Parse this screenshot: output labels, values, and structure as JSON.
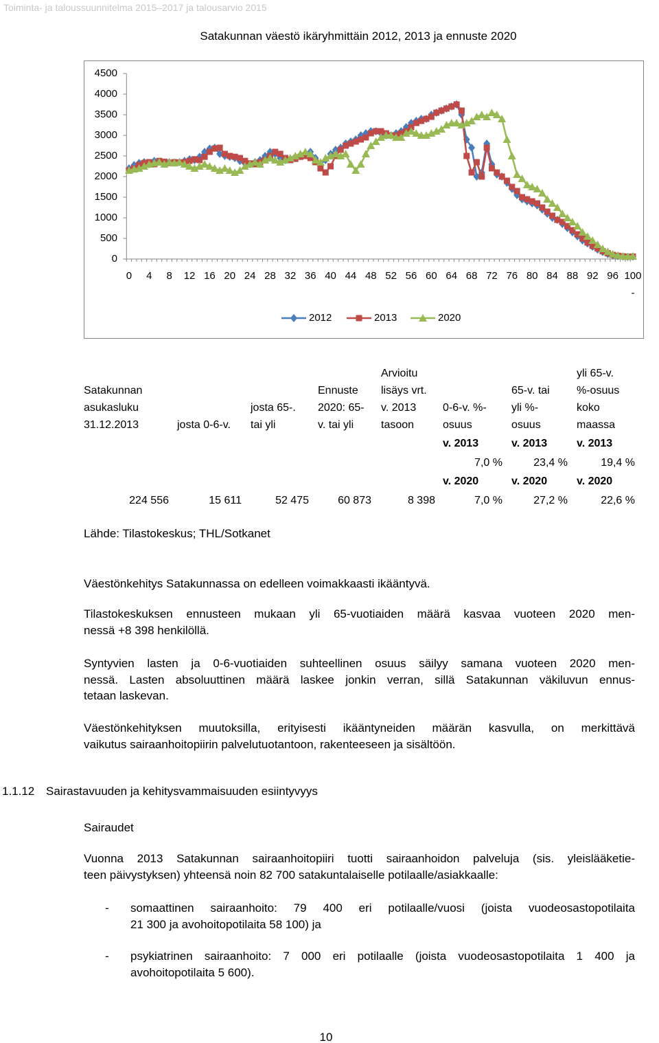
{
  "header": "Toiminta- ja taloussuunnitelma 2015–2017 ja talousarvio 2015",
  "chart_data": {
    "type": "line",
    "title": "Satakunnan väestö ikäryhmittäin 2012, 2013 ja ennuste 2020",
    "categories": [
      "0",
      null,
      null,
      null,
      "4",
      null,
      null,
      null,
      "8",
      null,
      null,
      null,
      "12",
      null,
      null,
      null,
      "16",
      null,
      null,
      null,
      "20",
      null,
      null,
      null,
      "24",
      null,
      null,
      null,
      "28",
      null,
      null,
      null,
      "32",
      null,
      null,
      null,
      "36",
      null,
      null,
      null,
      "40",
      null,
      null,
      null,
      "44",
      null,
      null,
      null,
      "48",
      null,
      null,
      null,
      "52",
      null,
      null,
      null,
      "56",
      null,
      null,
      null,
      "60",
      null,
      null,
      null,
      "64",
      null,
      null,
      null,
      "68",
      null,
      null,
      null,
      "72",
      null,
      null,
      null,
      "76",
      null,
      null,
      null,
      "80",
      null,
      null,
      null,
      "84",
      null,
      null,
      null,
      "88",
      null,
      null,
      null,
      "92",
      null,
      null,
      null,
      "96",
      null,
      null,
      null,
      "100 -"
    ],
    "series": [
      {
        "name": "2012",
        "color": "#4a7ebb",
        "marker": "diamond",
        "values": [
          2200,
          2280,
          2330,
          2350,
          2300,
          2380,
          2360,
          2330,
          2350,
          2340,
          2350,
          2380,
          2420,
          2400,
          2480,
          2600,
          2680,
          2700,
          2550,
          2500,
          2480,
          2450,
          2380,
          2320,
          2300,
          2350,
          2400,
          2500,
          2600,
          2550,
          2450,
          2400,
          2430,
          2480,
          2500,
          2520,
          2600,
          2450,
          2300,
          2400,
          2550,
          2650,
          2700,
          2800,
          2850,
          2900,
          3000,
          3050,
          3100,
          3100,
          3050,
          3000,
          3000,
          3050,
          3100,
          3200,
          3300,
          3350,
          3400,
          3400,
          3500,
          3550,
          3600,
          3650,
          3700,
          3750,
          3500,
          2900,
          2700,
          2000,
          2100,
          2800,
          2300,
          2050,
          2000,
          1850,
          1700,
          1550,
          1450,
          1400,
          1350,
          1300,
          1200,
          1100,
          1000,
          950,
          850,
          750,
          650,
          550,
          450,
          380,
          300,
          230,
          170,
          120,
          90,
          70,
          60,
          55,
          60
        ]
      },
      {
        "name": "2013",
        "color": "#be4b48",
        "marker": "square",
        "values": [
          2150,
          2200,
          2280,
          2330,
          2350,
          2300,
          2380,
          2360,
          2330,
          2350,
          2340,
          2350,
          2380,
          2420,
          2400,
          2480,
          2600,
          2680,
          2700,
          2550,
          2500,
          2480,
          2450,
          2380,
          2320,
          2300,
          2350,
          2400,
          2500,
          2600,
          2550,
          2450,
          2400,
          2430,
          2480,
          2500,
          2450,
          2350,
          2200,
          2100,
          2250,
          2500,
          2650,
          2750,
          2800,
          2850,
          2900,
          2950,
          3050,
          3100,
          3100,
          3050,
          3000,
          3000,
          3050,
          3100,
          3200,
          3300,
          3350,
          3400,
          3450,
          3550,
          3600,
          3650,
          3700,
          3750,
          3600,
          2500,
          2100,
          2350,
          2000,
          2700,
          2200,
          2100,
          2000,
          1900,
          1750,
          1650,
          1500,
          1450,
          1400,
          1350,
          1250,
          1150,
          1050,
          950,
          900,
          800,
          700,
          600,
          500,
          400,
          320,
          260,
          190,
          140,
          100,
          80,
          65,
          55,
          60
        ]
      },
      {
        "name": "2020",
        "color": "#98b954",
        "marker": "triangle",
        "values": [
          2150,
          2180,
          2200,
          2250,
          2300,
          2330,
          2350,
          2300,
          2350,
          2330,
          2350,
          2300,
          2250,
          2200,
          2250,
          2300,
          2250,
          2200,
          2150,
          2200,
          2150,
          2100,
          2150,
          2250,
          2300,
          2350,
          2300,
          2400,
          2450,
          2400,
          2350,
          2400,
          2450,
          2500,
          2550,
          2600,
          2550,
          2400,
          2350,
          2450,
          2500,
          2550,
          2500,
          2550,
          2300,
          2150,
          2300,
          2550,
          2750,
          2850,
          2950,
          3000,
          3000,
          2950,
          2950,
          3050,
          3100,
          3050,
          3000,
          3000,
          3050,
          3100,
          3150,
          3250,
          3300,
          3300,
          3250,
          3300,
          3350,
          3450,
          3500,
          3450,
          3550,
          3500,
          3400,
          2900,
          2500,
          2050,
          1950,
          1800,
          1750,
          1700,
          1600,
          1450,
          1350,
          1250,
          1100,
          1000,
          900,
          800,
          650,
          550,
          450,
          350,
          250,
          180,
          120,
          90,
          70,
          60,
          70
        ]
      }
    ],
    "ylim": [
      0,
      4500
    ],
    "yticks": [
      0,
      500,
      1000,
      1500,
      2000,
      2500,
      3000,
      3500,
      4000,
      4500
    ],
    "grid": false,
    "legend": "bottom"
  },
  "table": {
    "columns": [
      [
        "Satakunnan",
        "asukasluku",
        "31.12.2013"
      ],
      [
        "josta 0-6-v."
      ],
      [
        "josta 65-.",
        "tai yli"
      ],
      [
        "Ennuste",
        "2020: 65-",
        "v. tai yli"
      ],
      [
        "Arvioitu",
        "lisäys vrt.",
        "v. 2013",
        "tasoon"
      ],
      [
        "0-6-v. %-",
        "osuus"
      ],
      [
        "65-v. tai",
        "yli %-",
        "osuus"
      ],
      [
        "yli 65-v.",
        "%-osuus",
        "koko",
        "maassa"
      ]
    ],
    "shares": [
      {
        "year": "v. 2013",
        "values": [
          "7,0 %",
          "23,4 %",
          "19,4 %"
        ]
      },
      {
        "year": "v. 2020",
        "values": [
          "7,0 %",
          "27,2 %",
          "22,6 %"
        ]
      }
    ],
    "values": [
      "224 556",
      "15 611",
      "52 475",
      "60 873",
      "8 398"
    ]
  },
  "source": "Lähde: Tilastokeskus; THL/Sotkanet",
  "paragraphs": [
    [
      "Väestönkehitys Satakunnassa on edelleen voimakkaasti ikääntyvä."
    ],
    [
      "Tilastokeskuksen ennusteen mukaan yli 65-vuotiaiden määrä kasvaa vuoteen 2020 men-",
      "nessä +8 398 henkilöllä."
    ],
    [
      "Syntyvien lasten ja 0-6-vuotiaiden suhteellinen osuus säilyy samana vuoteen 2020 men-",
      "nessä. Lasten absoluuttinen määrä laskee jonkin verran, sillä Satakunnan väkiluvun ennus-",
      "tetaan laskevan."
    ],
    [
      "Väestönkehityksen muutoksilla, erityisesti ikääntyneiden määrän kasvulla, on merkittävä",
      "vaikutus sairaanhoitopiirin palvelutuotantoon, rakenteeseen ja sisältöön."
    ]
  ],
  "section": {
    "number": "1.1.12",
    "title": "Sairastavuuden ja kehitysvammaisuuden esiintyvyys",
    "subheading": "Sairaudet",
    "intro": [
      "Vuonna 2013 Satakunnan sairaanhoitopiiri tuotti sairaanhoidon palveluja (sis. yleislääketie-",
      "teen päivystyksen) yhteensä noin 82 700 satakuntalaiselle potilaalle/asiakkaalle:"
    ],
    "bullet": "-",
    "items": [
      [
        "somaattinen sairaanhoito: 79 400 eri potilaalle/vuosi (joista vuodeosastopotilaita",
        "21 300 ja avohoitopotilaita 58 100) ja"
      ],
      [
        "psykiatrinen sairaanhoito: 7 000 eri potilaalle (joista vuodeosastopotilaita 1 400 ja",
        "avohoitopotilaita 5 600)."
      ]
    ]
  },
  "page_number": "10"
}
